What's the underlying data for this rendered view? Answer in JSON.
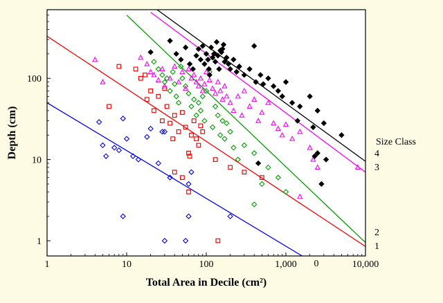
{
  "chart_data": {
    "type": "scatter",
    "xlabel": "Total Area in Decile (cm²)",
    "ylabel": "Depth (cm)",
    "xscale": "log",
    "yscale": "log",
    "xlim": [
      1,
      10000
    ],
    "ylim": [
      0.65,
      700
    ],
    "grid": false,
    "x_ticks": [
      {
        "value": 1,
        "label": "1"
      },
      {
        "value": 10,
        "label": "10"
      },
      {
        "value": 100,
        "label": "100"
      },
      {
        "value": 1000,
        "label": "1,000"
      },
      {
        "value": 10000,
        "label": "10,000"
      }
    ],
    "y_ticks": [
      {
        "value": 1,
        "label": "1"
      },
      {
        "value": 10,
        "label": "10"
      },
      {
        "value": 100,
        "label": "100"
      }
    ],
    "legend": {
      "title": "Size Class",
      "placement": "right",
      "stray_label": "0"
    },
    "series": [
      {
        "name": "4",
        "label": "4",
        "color": "#000000",
        "marker": "filled-diamond",
        "line": {
          "x": [
            20,
            10000
          ],
          "y": [
            800,
            9.5
          ]
        },
        "points": [
          [
            20,
            210
          ],
          [
            35,
            290
          ],
          [
            42,
            200
          ],
          [
            48,
            170
          ],
          [
            55,
            240
          ],
          [
            62,
            150
          ],
          [
            68,
            130
          ],
          [
            75,
            190
          ],
          [
            80,
            230
          ],
          [
            85,
            170
          ],
          [
            90,
            250
          ],
          [
            95,
            150
          ],
          [
            100,
            200
          ],
          [
            105,
            170
          ],
          [
            108,
            130
          ],
          [
            110,
            110
          ],
          [
            115,
            240
          ],
          [
            120,
            180
          ],
          [
            125,
            200
          ],
          [
            130,
            160
          ],
          [
            135,
            280
          ],
          [
            140,
            190
          ],
          [
            145,
            130
          ],
          [
            150,
            220
          ],
          [
            155,
            210
          ],
          [
            160,
            230
          ],
          [
            165,
            260
          ],
          [
            170,
            160
          ],
          [
            180,
            180
          ],
          [
            190,
            150
          ],
          [
            200,
            130
          ],
          [
            220,
            170
          ],
          [
            240,
            120
          ],
          [
            260,
            140
          ],
          [
            300,
            110
          ],
          [
            350,
            130
          ],
          [
            400,
            250
          ],
          [
            420,
            90
          ],
          [
            480,
            110
          ],
          [
            520,
            85
          ],
          [
            600,
            100
          ],
          [
            700,
            80
          ],
          [
            800,
            70
          ],
          [
            900,
            60
          ],
          [
            1000,
            90
          ],
          [
            1200,
            50
          ],
          [
            1500,
            45
          ],
          [
            2000,
            60
          ],
          [
            2500,
            40
          ],
          [
            3000,
            28
          ],
          [
            5000,
            20
          ],
          [
            1400,
            30
          ],
          [
            2200,
            25
          ],
          [
            2500,
            12
          ],
          [
            2300,
            11
          ],
          [
            3200,
            10
          ],
          [
            2800,
            5
          ],
          [
            450,
            9
          ]
        ]
      },
      {
        "name": "3",
        "label": "3",
        "color": "#ff00ff",
        "marker": "open-triangle",
        "line": {
          "x": [
            20,
            10000
          ],
          "y": [
            650,
            7
          ]
        },
        "points": [
          [
            4,
            170
          ],
          [
            5,
            90
          ],
          [
            15,
            180
          ],
          [
            18,
            150
          ],
          [
            20,
            120
          ],
          [
            22,
            110
          ],
          [
            25,
            95
          ],
          [
            28,
            130
          ],
          [
            30,
            80
          ],
          [
            35,
            100
          ],
          [
            40,
            140
          ],
          [
            45,
            90
          ],
          [
            50,
            120
          ],
          [
            55,
            75
          ],
          [
            60,
            130
          ],
          [
            65,
            100
          ],
          [
            70,
            110
          ],
          [
            75,
            90
          ],
          [
            80,
            80
          ],
          [
            85,
            100
          ],
          [
            90,
            70
          ],
          [
            95,
            85
          ],
          [
            100,
            120
          ],
          [
            110,
            95
          ],
          [
            120,
            75
          ],
          [
            130,
            65
          ],
          [
            140,
            90
          ],
          [
            150,
            70
          ],
          [
            160,
            55
          ],
          [
            170,
            80
          ],
          [
            180,
            60
          ],
          [
            200,
            50
          ],
          [
            220,
            40
          ],
          [
            250,
            60
          ],
          [
            280,
            35
          ],
          [
            300,
            70
          ],
          [
            350,
            45
          ],
          [
            400,
            55
          ],
          [
            450,
            30
          ],
          [
            500,
            38
          ],
          [
            600,
            50
          ],
          [
            700,
            28
          ],
          [
            800,
            24
          ],
          [
            900,
            20
          ],
          [
            1000,
            27
          ],
          [
            1200,
            18
          ],
          [
            1500,
            22
          ],
          [
            2000,
            14
          ],
          [
            2200,
            10
          ],
          [
            2500,
            8
          ],
          [
            8000,
            8
          ],
          [
            1500,
            3.5
          ]
        ]
      },
      {
        "name": "2",
        "label": "2",
        "color": "#00a000",
        "marker": "open-diamond",
        "line": {
          "x": [
            10,
            10000
          ],
          "y": [
            600,
            0.95
          ]
        },
        "points": [
          [
            22,
            160
          ],
          [
            25,
            130
          ],
          [
            28,
            110
          ],
          [
            30,
            90
          ],
          [
            32,
            100
          ],
          [
            35,
            70
          ],
          [
            38,
            120
          ],
          [
            40,
            85
          ],
          [
            42,
            60
          ],
          [
            45,
            50
          ],
          [
            48,
            140
          ],
          [
            50,
            100
          ],
          [
            55,
            80
          ],
          [
            60,
            65
          ],
          [
            65,
            45
          ],
          [
            70,
            55
          ],
          [
            75,
            35
          ],
          [
            80,
            50
          ],
          [
            85,
            40
          ],
          [
            90,
            60
          ],
          [
            95,
            30
          ],
          [
            100,
            70
          ],
          [
            110,
            120
          ],
          [
            120,
            25
          ],
          [
            130,
            45
          ],
          [
            140,
            35
          ],
          [
            150,
            20
          ],
          [
            160,
            30
          ],
          [
            170,
            18
          ],
          [
            180,
            28
          ],
          [
            200,
            22
          ],
          [
            220,
            14
          ],
          [
            250,
            10
          ],
          [
            300,
            15
          ],
          [
            400,
            12
          ],
          [
            600,
            8
          ],
          [
            800,
            6
          ],
          [
            1000,
            4
          ],
          [
            400,
            2.8
          ],
          [
            500,
            5
          ]
        ]
      },
      {
        "name": "1",
        "label": "1",
        "color": "#ff0000",
        "marker": "open-square",
        "line": {
          "x": [
            1,
            10000
          ],
          "y": [
            330,
            0.85
          ]
        },
        "points": [
          [
            6,
            45
          ],
          [
            8,
            140
          ],
          [
            13,
            130
          ],
          [
            15,
            100
          ],
          [
            17,
            110
          ],
          [
            18,
            55
          ],
          [
            20,
            70
          ],
          [
            22,
            40
          ],
          [
            25,
            60
          ],
          [
            28,
            30
          ],
          [
            30,
            75
          ],
          [
            32,
            45
          ],
          [
            35,
            28
          ],
          [
            38,
            18
          ],
          [
            40,
            35
          ],
          [
            45,
            22
          ],
          [
            50,
            38
          ],
          [
            55,
            25
          ],
          [
            60,
            12
          ],
          [
            62,
            11
          ],
          [
            65,
            20
          ],
          [
            70,
            30
          ],
          [
            75,
            18
          ],
          [
            80,
            15
          ],
          [
            85,
            26
          ],
          [
            90,
            22
          ],
          [
            40,
            7
          ],
          [
            50,
            6
          ],
          [
            60,
            4
          ],
          [
            130,
            10
          ],
          [
            200,
            8
          ],
          [
            300,
            7
          ],
          [
            500,
            6
          ],
          [
            140,
            1
          ]
        ]
      },
      {
        "name": "0",
        "label": "0",
        "color": "#0000ff",
        "marker": "open-diamond",
        "line": {
          "x": [
            1,
            1600
          ],
          "y": [
            50,
            0.65
          ]
        },
        "points": [
          [
            4.5,
            29
          ],
          [
            5,
            15
          ],
          [
            5.5,
            11
          ],
          [
            7,
            14
          ],
          [
            8,
            13
          ],
          [
            9,
            32
          ],
          [
            10,
            18
          ],
          [
            12,
            11
          ],
          [
            14,
            10
          ],
          [
            18,
            19
          ],
          [
            20,
            24
          ],
          [
            25,
            9
          ],
          [
            28,
            22
          ],
          [
            30,
            22
          ],
          [
            35,
            6
          ],
          [
            60,
            5
          ],
          [
            65,
            7
          ],
          [
            9,
            2
          ],
          [
            60,
            2
          ],
          [
            200,
            2
          ],
          [
            30,
            1
          ],
          [
            55,
            1
          ]
        ]
      }
    ]
  }
}
